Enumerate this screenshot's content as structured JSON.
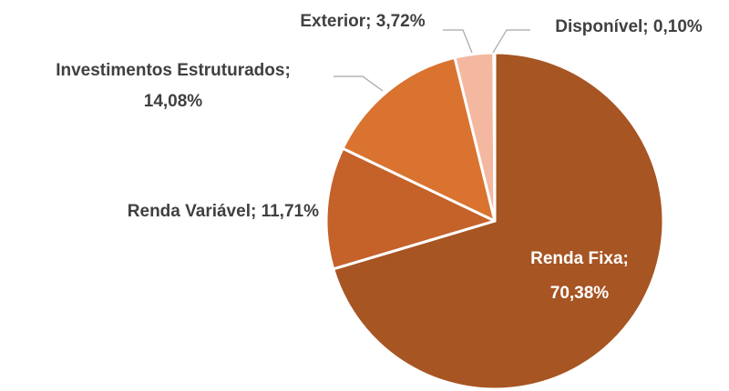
{
  "chart_data": {
    "type": "pie",
    "categories": [
      "Renda Fixa;",
      "Renda Variável;",
      "Investimentos Estruturados;",
      "Exterior;",
      "Disponível;"
    ],
    "values": [
      70.38,
      11.71,
      14.08,
      3.72,
      0.1
    ],
    "value_labels": [
      "70,38%",
      "11,71%",
      "14,08%",
      "3,72%",
      "0,10%"
    ],
    "colors": [
      "#A65523",
      "#C4622A",
      "#D9732F",
      "#F4B8A0",
      "#F4B8A0"
    ]
  }
}
